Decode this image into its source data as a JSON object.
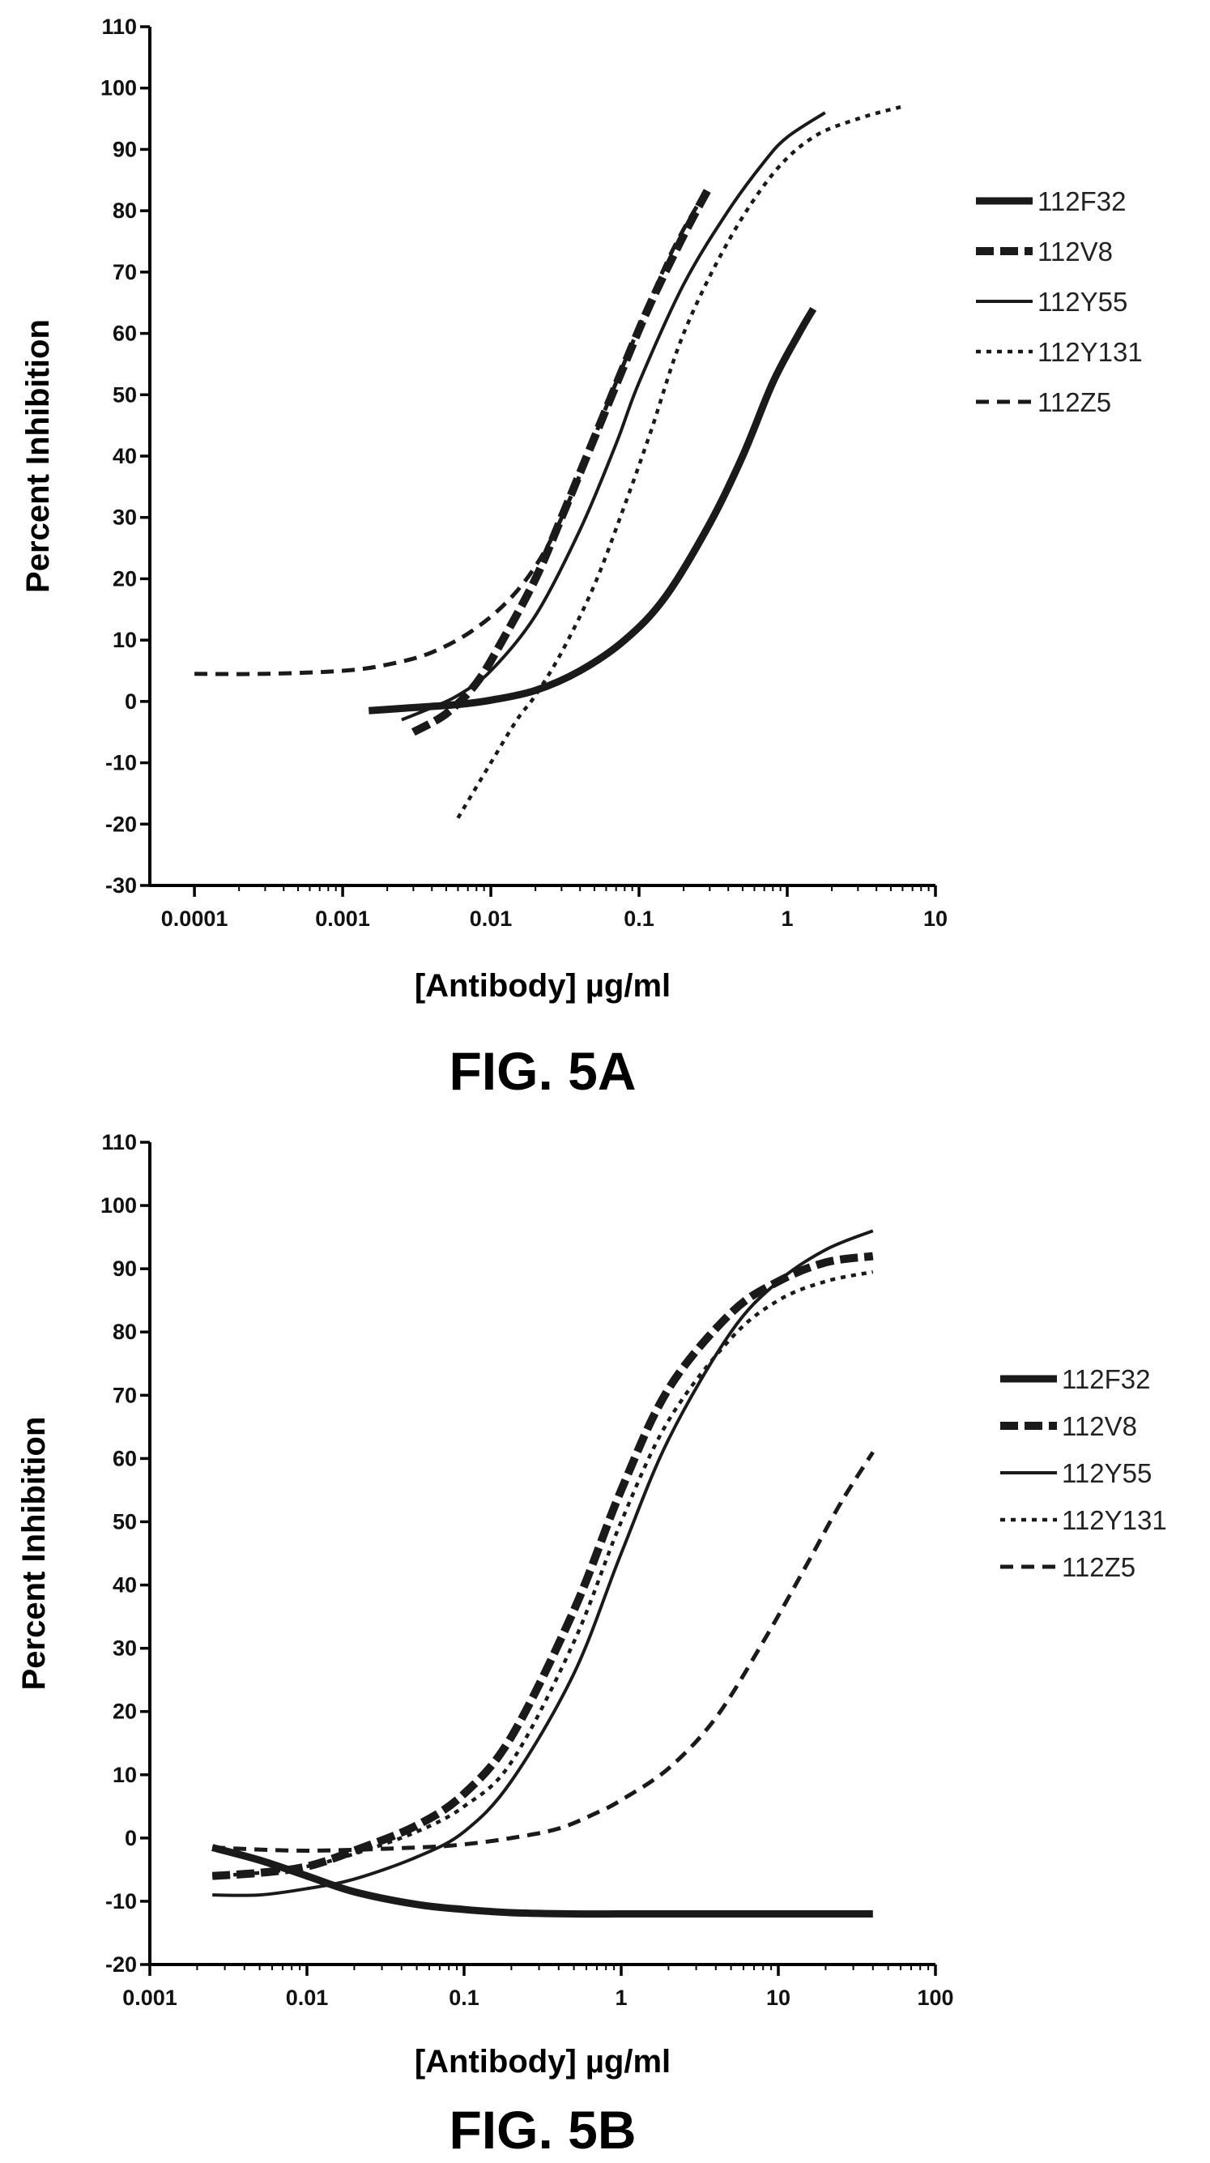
{
  "chart_data": [
    {
      "type": "line",
      "caption": "FIG. 5A",
      "xlabel": "[Antibody] µg/ml",
      "ylabel": "Percent Inhibition",
      "xscale": "log",
      "xlim": [
        5e-05,
        10
      ],
      "ylim": [
        -30,
        110
      ],
      "xticks": [
        0.0001,
        0.001,
        0.01,
        0.1,
        1,
        10
      ],
      "xtick_labels": [
        "0.0001",
        "0.001",
        "0.01",
        "0.1",
        "1",
        "10"
      ],
      "yticks": [
        -30,
        -20,
        -10,
        0,
        10,
        20,
        30,
        40,
        50,
        60,
        70,
        80,
        90,
        100,
        110
      ],
      "ytick_labels": [
        "-30",
        "-20",
        "-10",
        "0",
        "10",
        "20",
        "30",
        "40",
        "50",
        "60",
        "70",
        "80",
        "90",
        "100",
        "110"
      ],
      "grid": false,
      "legend_position": "right",
      "series": [
        {
          "name": "112F32",
          "style": "thick-solid",
          "x": [
            0.0015,
            0.003,
            0.006,
            0.01,
            0.02,
            0.04,
            0.08,
            0.15,
            0.3,
            0.5,
            0.8,
            1.2,
            1.5
          ],
          "y": [
            -1.5,
            -1,
            -0.5,
            0.2,
            1.8,
            5,
            10,
            17,
            29,
            40,
            52,
            60,
            64
          ]
        },
        {
          "name": "112V8",
          "style": "thick-dash",
          "x": [
            0.003,
            0.005,
            0.008,
            0.012,
            0.02,
            0.03,
            0.05,
            0.08,
            0.12,
            0.2,
            0.3
          ],
          "y": [
            -5,
            -2,
            3,
            10,
            20,
            30,
            43,
            55,
            65,
            76,
            84
          ]
        },
        {
          "name": "112Y55",
          "style": "thin-solid",
          "x": [
            0.0025,
            0.004,
            0.006,
            0.01,
            0.02,
            0.04,
            0.07,
            0.1,
            0.2,
            0.4,
            0.7,
            1,
            1.8
          ],
          "y": [
            -3,
            -1,
            1,
            5,
            14,
            28,
            42,
            52,
            68,
            80,
            88,
            92,
            96
          ]
        },
        {
          "name": "112Y131",
          "style": "dotted",
          "x": [
            0.006,
            0.01,
            0.015,
            0.02,
            0.03,
            0.05,
            0.08,
            0.12,
            0.2,
            0.4,
            0.8,
            1.5,
            3,
            6
          ],
          "y": [
            -19,
            -10,
            -3,
            1,
            8,
            19,
            32,
            44,
            60,
            75,
            86,
            92,
            95,
            97
          ]
        },
        {
          "name": "112Z5",
          "style": "dash",
          "x": [
            0.0001,
            0.0003,
            0.001,
            0.002,
            0.004,
            0.008,
            0.015,
            0.025,
            0.04,
            0.06,
            0.1,
            0.15,
            0.2,
            0.28
          ],
          "y": [
            4.5,
            4.5,
            5,
            6,
            8,
            12,
            18,
            26,
            37,
            48,
            61,
            71,
            77,
            83
          ]
        }
      ]
    },
    {
      "type": "line",
      "caption": "FIG. 5B",
      "xlabel": "[Antibody] µg/ml",
      "ylabel": "Percent Inhibition",
      "xscale": "log",
      "xlim": [
        0.001,
        100
      ],
      "ylim": [
        -20,
        110
      ],
      "xticks": [
        0.001,
        0.01,
        0.1,
        1,
        10,
        100
      ],
      "xtick_labels": [
        "0.001",
        "0.01",
        "0.1",
        "1",
        "10",
        "100"
      ],
      "yticks": [
        -20,
        -10,
        0,
        10,
        20,
        30,
        40,
        50,
        60,
        70,
        80,
        90,
        100,
        110
      ],
      "ytick_labels": [
        "-20",
        "-10",
        "0",
        "10",
        "20",
        "30",
        "40",
        "50",
        "60",
        "70",
        "80",
        "90",
        "100",
        "110"
      ],
      "grid": false,
      "legend_position": "right",
      "series": [
        {
          "name": "112F32",
          "style": "thick-solid",
          "x": [
            0.0025,
            0.005,
            0.01,
            0.02,
            0.05,
            0.1,
            0.2,
            0.5,
            1,
            2,
            5,
            10,
            20,
            40
          ],
          "y": [
            -1.5,
            -3.5,
            -6,
            -8.5,
            -10.5,
            -11.3,
            -11.8,
            -12,
            -12,
            -12,
            -12,
            -12,
            -12,
            -12
          ]
        },
        {
          "name": "112V8",
          "style": "thick-dash",
          "x": [
            0.0025,
            0.005,
            0.01,
            0.02,
            0.05,
            0.1,
            0.2,
            0.5,
            1,
            2,
            5,
            10,
            20,
            40
          ],
          "y": [
            -6,
            -5.5,
            -4.5,
            -2,
            2,
            7,
            16,
            36,
            55,
            71,
            83,
            88,
            91,
            92
          ]
        },
        {
          "name": "112Y55",
          "style": "thin-solid",
          "x": [
            0.0025,
            0.005,
            0.01,
            0.02,
            0.05,
            0.1,
            0.2,
            0.5,
            1,
            2,
            5,
            10,
            20,
            40
          ],
          "y": [
            -9,
            -9,
            -8,
            -6.5,
            -3,
            1,
            9,
            26,
            45,
            63,
            80,
            88,
            93,
            96
          ]
        },
        {
          "name": "112Y131",
          "style": "dotted",
          "x": [
            0.0025,
            0.005,
            0.01,
            0.02,
            0.05,
            0.1,
            0.2,
            0.5,
            1,
            2,
            5,
            10,
            20,
            40
          ],
          "y": [
            -6,
            -5.5,
            -4.5,
            -2.5,
            1,
            5,
            12,
            31,
            50,
            66,
            79,
            85,
            88,
            89.5
          ]
        },
        {
          "name": "112Z5",
          "style": "dash",
          "x": [
            0.0025,
            0.01,
            0.05,
            0.1,
            0.2,
            0.4,
            0.7,
            1,
            2,
            4,
            8,
            15,
            25,
            40
          ],
          "y": [
            -1.5,
            -2,
            -1.5,
            -1,
            0,
            1.5,
            4,
            6,
            11,
            19,
            31,
            43,
            53,
            61
          ]
        }
      ]
    }
  ]
}
